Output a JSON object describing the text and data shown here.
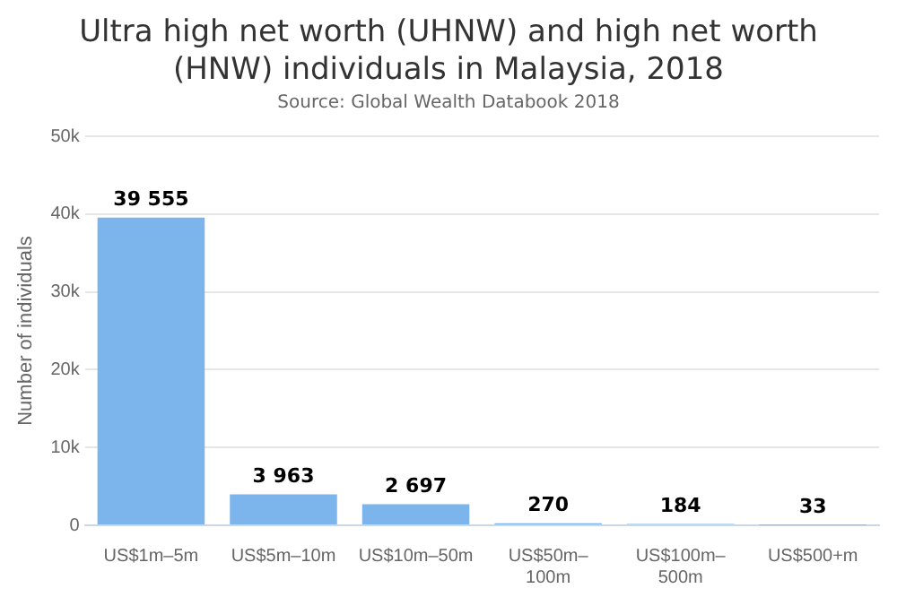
{
  "chart_data": {
    "type": "bar",
    "title": "Ultra high net worth (UHNW) and high net worth (HNW) individuals in Malaysia, 2018",
    "subtitle": "Source: Global Wealth Databook 2018",
    "ylabel": "Number of individuals",
    "categories": [
      "US$1m–5m",
      "US$5m–10m",
      "US$10m–50m",
      "US$50m–100m",
      "US$100m–500m",
      "US$500+m"
    ],
    "values": [
      39555,
      3963,
      2697,
      270,
      184,
      33
    ],
    "value_labels": [
      "39 555",
      "3 963",
      "2 697",
      "270",
      "184",
      "33"
    ],
    "color": "#7cb5ec",
    "ylim": [
      0,
      50000
    ],
    "yticks": [
      0,
      {
        "value": 10000,
        "label": "10k"
      },
      {
        "value": 20000,
        "label": "20k"
      },
      {
        "value": 30000,
        "label": "30k"
      },
      {
        "value": 40000,
        "label": "40k"
      },
      {
        "value": 50000,
        "label": "50k"
      }
    ],
    "grid": "y",
    "legend": false
  }
}
